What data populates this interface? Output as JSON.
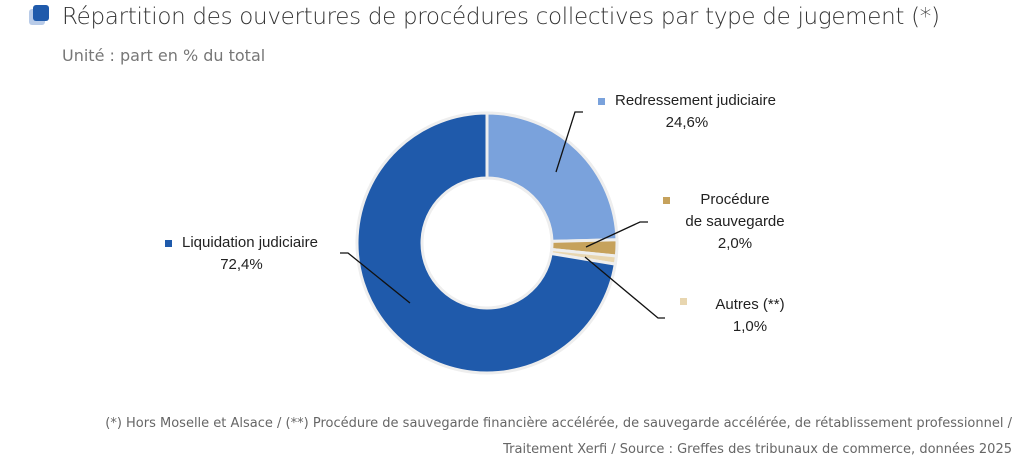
{
  "chart_data": {
    "type": "pie",
    "title": "Répartition des ouvertures de procédures collectives par type de jugement (*)",
    "subtitle": "Unité : part en % du total",
    "slices": [
      {
        "label": "Redressement judiciaire",
        "value": 24.6,
        "value_label": "24,6%",
        "color": "#7aa2dc"
      },
      {
        "label": "Procédure de sauvegarde",
        "value": 2.0,
        "value_label": "2,0%",
        "color": "#c6a25c"
      },
      {
        "label": "Autres (**)",
        "value": 1.0,
        "value_label": "1,0%",
        "color": "#e8d6b0"
      },
      {
        "label": "Liquidation judiciaire",
        "value": 72.4,
        "value_label": "72,4%",
        "color": "#1f5aab"
      }
    ]
  },
  "footnotes": [
    "(*) Hors Moselle et Alsace / (**) Procédure de sauvegarde financière accélérée, de sauvegarde accélérée, de rétablissement professionnel /",
    "Traitement Xerfi / Source : Greffes des tribunaux de commerce, données 2025"
  ]
}
